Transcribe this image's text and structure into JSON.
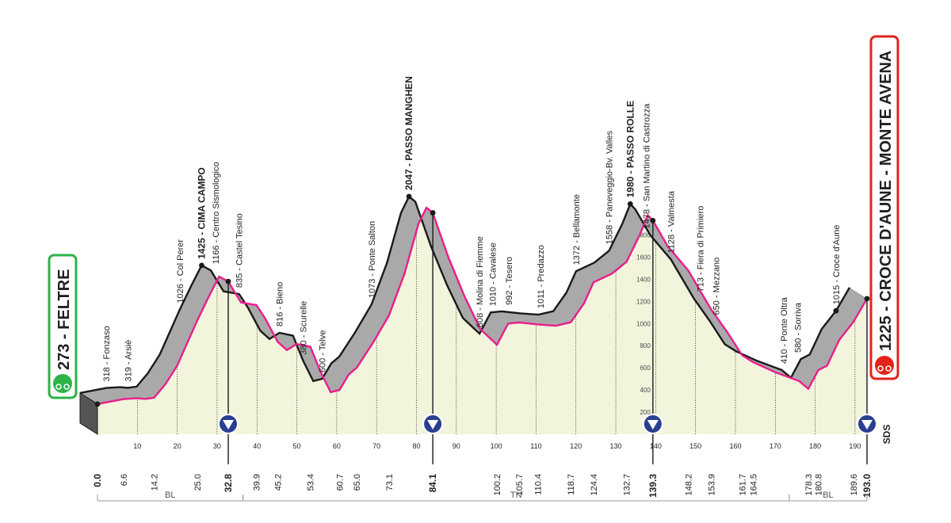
{
  "chart_data": {
    "type": "area",
    "title": "",
    "xlabel": "",
    "ylabel": "",
    "xlim": [
      0,
      193.0
    ],
    "ylim": [
      0,
      2047
    ],
    "x_grid_ticks": [
      10,
      20,
      30,
      40,
      50,
      60,
      70,
      80,
      90,
      100,
      110,
      120,
      130,
      140,
      150,
      160,
      170,
      180,
      190
    ],
    "y_ticks": [
      200,
      400,
      600,
      800,
      1000,
      1200,
      1400,
      1600,
      1800
    ],
    "profile": [
      {
        "x": 0.0,
        "y": 273
      },
      {
        "x": 4.0,
        "y": 300
      },
      {
        "x": 6.6,
        "y": 318
      },
      {
        "x": 10.0,
        "y": 325
      },
      {
        "x": 12.0,
        "y": 319
      },
      {
        "x": 14.2,
        "y": 330
      },
      {
        "x": 17.0,
        "y": 450
      },
      {
        "x": 20.0,
        "y": 620
      },
      {
        "x": 25.0,
        "y": 1026
      },
      {
        "x": 28.0,
        "y": 1250
      },
      {
        "x": 30.5,
        "y": 1425
      },
      {
        "x": 32.8,
        "y": 1380
      },
      {
        "x": 36.0,
        "y": 1190
      },
      {
        "x": 39.9,
        "y": 1166
      },
      {
        "x": 42.0,
        "y": 1050
      },
      {
        "x": 45.2,
        "y": 835
      },
      {
        "x": 47.5,
        "y": 760
      },
      {
        "x": 50.0,
        "y": 816
      },
      {
        "x": 53.4,
        "y": 790
      },
      {
        "x": 56.0,
        "y": 560
      },
      {
        "x": 58.5,
        "y": 380
      },
      {
        "x": 60.7,
        "y": 400
      },
      {
        "x": 63.0,
        "y": 540
      },
      {
        "x": 65.0,
        "y": 600
      },
      {
        "x": 69.0,
        "y": 820
      },
      {
        "x": 73.1,
        "y": 1073
      },
      {
        "x": 77.0,
        "y": 1450
      },
      {
        "x": 80.5,
        "y": 1900
      },
      {
        "x": 82.5,
        "y": 2047
      },
      {
        "x": 84.1,
        "y": 2000
      },
      {
        "x": 88.0,
        "y": 1600
      },
      {
        "x": 92.0,
        "y": 1250
      },
      {
        "x": 96.0,
        "y": 950
      },
      {
        "x": 100.2,
        "y": 808
      },
      {
        "x": 103.0,
        "y": 1000
      },
      {
        "x": 105.7,
        "y": 1010
      },
      {
        "x": 110.4,
        "y": 992
      },
      {
        "x": 115.0,
        "y": 980
      },
      {
        "x": 118.7,
        "y": 1011
      },
      {
        "x": 122.0,
        "y": 1180
      },
      {
        "x": 124.4,
        "y": 1372
      },
      {
        "x": 129.0,
        "y": 1450
      },
      {
        "x": 132.7,
        "y": 1558
      },
      {
        "x": 136.0,
        "y": 1800
      },
      {
        "x": 138.0,
        "y": 1980
      },
      {
        "x": 139.3,
        "y": 1930
      },
      {
        "x": 143.0,
        "y": 1700
      },
      {
        "x": 148.2,
        "y": 1478
      },
      {
        "x": 153.9,
        "y": 1128
      },
      {
        "x": 158.0,
        "y": 920
      },
      {
        "x": 161.7,
        "y": 713
      },
      {
        "x": 164.5,
        "y": 650
      },
      {
        "x": 170.0,
        "y": 560
      },
      {
        "x": 176.0,
        "y": 480
      },
      {
        "x": 178.3,
        "y": 410
      },
      {
        "x": 180.8,
        "y": 580
      },
      {
        "x": 183.0,
        "y": 620
      },
      {
        "x": 186.0,
        "y": 850
      },
      {
        "x": 189.6,
        "y": 1015
      },
      {
        "x": 193.0,
        "y": 1225
      }
    ],
    "km_labels": [
      {
        "km": 0.0,
        "text": "0.0",
        "bold": true
      },
      {
        "km": 6.6,
        "text": "6.6"
      },
      {
        "km": 14.2,
        "text": "14.2"
      },
      {
        "km": 25.0,
        "text": "25.0"
      },
      {
        "km": 32.8,
        "text": "32.8",
        "bold": true
      },
      {
        "km": 39.9,
        "text": "39.9"
      },
      {
        "km": 45.2,
        "text": "45.2"
      },
      {
        "km": 53.4,
        "text": "53.4"
      },
      {
        "km": 60.7,
        "text": "60.7"
      },
      {
        "km": 65.0,
        "text": "65.0"
      },
      {
        "km": 73.1,
        "text": "73.1"
      },
      {
        "km": 84.1,
        "text": "84.1",
        "bold": true
      },
      {
        "km": 100.2,
        "text": "100.2"
      },
      {
        "km": 105.7,
        "text": "105.7"
      },
      {
        "km": 110.4,
        "text": "110.4"
      },
      {
        "km": 118.7,
        "text": "118.7"
      },
      {
        "km": 124.4,
        "text": "124.4"
      },
      {
        "km": 132.7,
        "text": "132.7"
      },
      {
        "km": 139.3,
        "text": "139.3",
        "bold": true
      },
      {
        "km": 148.2,
        "text": "148.2"
      },
      {
        "km": 153.9,
        "text": "153.9"
      },
      {
        "km": 161.7,
        "text": "161.7"
      },
      {
        "km": 164.5,
        "text": "164.5"
      },
      {
        "km": 178.3,
        "text": "178.3"
      },
      {
        "km": 180.8,
        "text": "180.8"
      },
      {
        "km": 189.6,
        "text": "189.6"
      },
      {
        "km": 193.0,
        "text": "193.0",
        "bold": true
      }
    ],
    "locations": [
      {
        "km": 6.6,
        "text": "318 - Fonzaso"
      },
      {
        "km": 12.0,
        "text": "319 - Arsiè"
      },
      {
        "km": 25.0,
        "text": "1026 - Col Perer"
      },
      {
        "km": 30.5,
        "text": "1425 - CIMA CAMPO",
        "bold": true
      },
      {
        "km": 34.0,
        "text": "1166 - Centro Sismologico"
      },
      {
        "km": 39.9,
        "text": "835 - Castel Tesino"
      },
      {
        "km": 50.0,
        "text": "816 - Bieno"
      },
      {
        "km": 56.0,
        "text": "380 - Scurelle"
      },
      {
        "km": 60.7,
        "text": "600 - Telve"
      },
      {
        "km": 73.1,
        "text": "1073 - Ponte Salton"
      },
      {
        "km": 82.5,
        "text": "2047 - PASSO MANGHEN",
        "bold": true
      },
      {
        "km": 100.2,
        "text": "808 - Molina di Fiemme"
      },
      {
        "km": 103.5,
        "text": "1010 - Cavalese"
      },
      {
        "km": 107.5,
        "text": "992 - Tesero"
      },
      {
        "km": 115.5,
        "text": "1011 - Predazzo"
      },
      {
        "km": 124.4,
        "text": "1372 - Bellamonte"
      },
      {
        "km": 132.7,
        "text": "1558 - Paneveggio-Bv. Valles"
      },
      {
        "km": 138.0,
        "text": "1980 - PASSO ROLLE",
        "bold": true
      },
      {
        "km": 142.0,
        "text": "1478 - San Martino di Castrozza"
      },
      {
        "km": 148.2,
        "text": "1128 - Valmesta"
      },
      {
        "km": 155.5,
        "text": "713 - Fiera di Primiero"
      },
      {
        "km": 159.5,
        "text": "650 - Mezzano"
      },
      {
        "km": 176.5,
        "text": "410 - Ponte Oltra"
      },
      {
        "km": 180.0,
        "text": "580 - Sorriva"
      },
      {
        "km": 189.6,
        "text": "1015 - Croce d'Aune"
      }
    ],
    "sprints": [
      32.8,
      84.1,
      139.3,
      193.0
    ],
    "start": {
      "km": 0.0,
      "text": "273 - FELTRE",
      "color": "#2db34a"
    },
    "finish": {
      "km": 193.0,
      "text": "1225 - CROCE D'AUNE - MONTE AVENA",
      "color": "#e2231a"
    },
    "provinces": [
      {
        "from": 0.0,
        "to": 36.5,
        "text": "BL"
      },
      {
        "from": 36.5,
        "to": 173.5,
        "text": "TN"
      },
      {
        "from": 173.5,
        "to": 193.0,
        "text": "BL"
      }
    ],
    "logo_text": "SDS",
    "colors": {
      "fill": "#f2f5dc",
      "ribbon": "#a9a9a9",
      "road": "#e91e8c",
      "sprint": "#2a3f8f",
      "grid": "#231f20"
    }
  }
}
